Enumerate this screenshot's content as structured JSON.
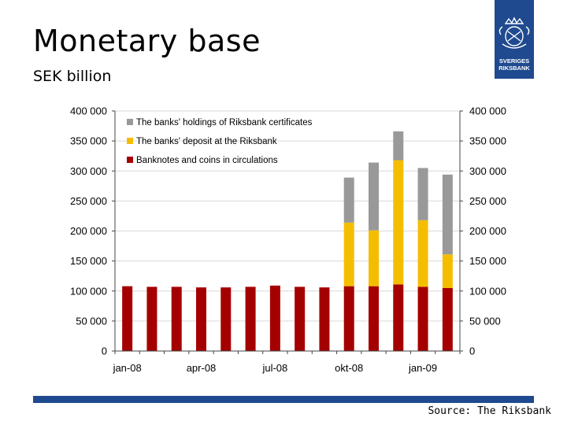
{
  "slide": {
    "title": "Monetary  base",
    "subtitle": "SEK billion",
    "source": "Source: The Riksbank",
    "logo_text": [
      "SVERIGES",
      "RIKSBANK"
    ]
  },
  "colors": {
    "certificates": "#999999",
    "deposit": "#f5bd00",
    "banknotes": "#a50000",
    "brand": "#1f4a8f"
  },
  "chart_data": {
    "type": "bar",
    "stacked": true,
    "title": "",
    "xlabel": "",
    "ylabel": "",
    "ylim": [
      0,
      400000
    ],
    "y_ticks": [
      0,
      50000,
      100000,
      150000,
      200000,
      250000,
      300000,
      350000,
      400000
    ],
    "y_tick_labels": [
      "0",
      "50 000",
      "100 000",
      "150 000",
      "200 000",
      "250 000",
      "300 000",
      "350 000",
      "400 000"
    ],
    "x_tick_labels": [
      {
        "label": "jan-08",
        "index": 0
      },
      {
        "label": "apr-08",
        "index": 3
      },
      {
        "label": "jul-08",
        "index": 6
      },
      {
        "label": "okt-08",
        "index": 9
      },
      {
        "label": "jan-09",
        "index": 12
      }
    ],
    "categories": [
      "jan-08",
      "feb-08",
      "mar-08",
      "apr-08",
      "maj-08",
      "jun-08",
      "jul-08",
      "aug-08",
      "sep-08",
      "okt-08",
      "nov-08",
      "dec-08",
      "jan-09",
      "feb-09"
    ],
    "grid": true,
    "legend_position": "top-left",
    "series": [
      {
        "name": "Banknotes and coins in circulations",
        "color_key": "banknotes",
        "values": [
          108000,
          107000,
          107000,
          106000,
          106000,
          107000,
          109000,
          107000,
          106000,
          108000,
          108000,
          111000,
          107000,
          105000
        ]
      },
      {
        "name": "The banks' deposit at the Riksbank",
        "color_key": "deposit",
        "values": [
          0,
          0,
          0,
          0,
          0,
          0,
          0,
          0,
          0,
          106000,
          93000,
          207000,
          111000,
          56000
        ]
      },
      {
        "name": "The banks' holdings of Riksbank certificates",
        "color_key": "certificates",
        "values": [
          0,
          0,
          0,
          0,
          0,
          0,
          0,
          0,
          0,
          75000,
          113000,
          48000,
          87000,
          133000
        ]
      }
    ],
    "legend_order": [
      "The banks' holdings of Riksbank certificates",
      "The banks' deposit at the Riksbank",
      "Banknotes and coins in circulations"
    ]
  }
}
